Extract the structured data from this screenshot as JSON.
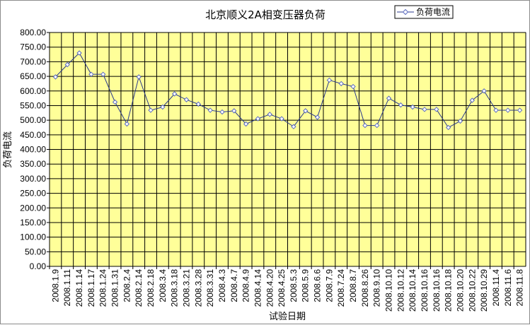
{
  "chart_data": {
    "type": "line",
    "title": "北京顺义2A相变压器负荷",
    "xlabel": "试验日期",
    "ylabel": "负荷电流",
    "ylim": [
      0,
      800
    ],
    "y_step": 50,
    "grid": true,
    "legend_position": "top-right",
    "colors": {
      "plot_background": "#ffff99",
      "gridline": "#000000",
      "series_line": "#2b3a8c",
      "marker_fill": "#ffffff",
      "marker_stroke": "#5b6bbf"
    },
    "categories": [
      "2008.1.9",
      "2008.1.11",
      "2008.1.14",
      "2008.1.17",
      "2008.1.24",
      "2008.1.31",
      "2008.2.4",
      "2008.2.14",
      "2008.2.18",
      "2008.3.4",
      "2008.3.18",
      "2008.3.21",
      "2008.3.28",
      "2008.3.31",
      "2008.4.3",
      "2008.4.7",
      "2008.4.9",
      "2008.4.14",
      "2008.4.20",
      "2008.4.25",
      "2008.5.3",
      "2008.5.9",
      "2008.6.6",
      "2008.7.9",
      "2008.7.24",
      "2008.8.7",
      "2008.8.26",
      "2008.9.10",
      "2008.10.10",
      "2008.10.12",
      "2008.10.14",
      "2008.10.16",
      "2008.10.16",
      "2008.10.18",
      "2008.10.20",
      "2008.10.22",
      "2008.10.29",
      "2008.11.4",
      "2008.11.6",
      "2008.11.8"
    ],
    "series": [
      {
        "name": "负荷电流",
        "values": [
          648,
          690,
          730,
          657,
          657,
          562,
          487,
          648,
          534,
          545,
          590,
          570,
          555,
          534,
          528,
          532,
          487,
          505,
          520,
          505,
          478,
          532,
          510,
          637,
          625,
          615,
          482,
          482,
          575,
          552,
          545,
          537,
          537,
          475,
          497,
          568,
          600,
          534,
          534,
          534
        ]
      }
    ]
  }
}
